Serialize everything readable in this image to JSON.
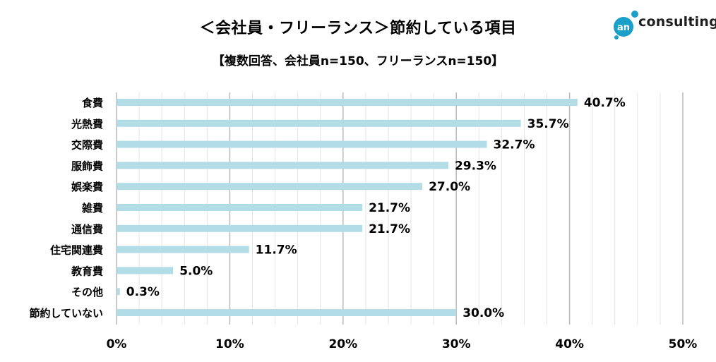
{
  "header": {
    "title": "＜会社員・フリーランス＞節約している項目",
    "subtitle": "【複数回答、会社員n=150、フリーランスn=150】"
  },
  "logo": {
    "text": "consulting",
    "mark_text": "an",
    "color": "#1a9fc8"
  },
  "chart_data": {
    "type": "bar",
    "orientation": "horizontal",
    "title": "＜会社員・フリーランス＞節約している項目",
    "subtitle": "【複数回答、会社員n=150、フリーランスn=150】",
    "categories": [
      "食費",
      "光熱費",
      "交際費",
      "服飾費",
      "娯楽費",
      "雑費",
      "通信費",
      "住宅関連費",
      "教育費",
      "その他",
      "節約していない"
    ],
    "values": [
      40.7,
      35.7,
      32.7,
      29.3,
      27.0,
      21.7,
      21.7,
      11.7,
      5.0,
      0.3,
      30.0
    ],
    "value_labels": [
      "40.7%",
      "35.7%",
      "32.7%",
      "29.3%",
      "27.0%",
      "21.7%",
      "21.7%",
      "11.7%",
      "5.0%",
      "0.3%",
      "30.0%"
    ],
    "xlim": [
      0,
      50
    ],
    "x_ticks": [
      0,
      10,
      20,
      30,
      40,
      50
    ],
    "x_tick_labels": [
      "0%",
      "10%",
      "20%",
      "30%",
      "40%",
      "50%"
    ],
    "xlabel": "",
    "ylabel": "",
    "bar_color": "#b3dde6",
    "grid": true,
    "legend": "none"
  }
}
